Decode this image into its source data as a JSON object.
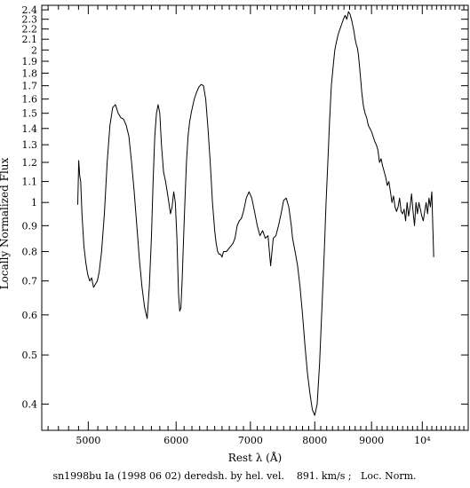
{
  "chart_data": {
    "type": "line",
    "xlabel": "Rest λ (Å)",
    "ylabel": "Locally Normalized Flux",
    "caption": "sn1998bu Ia (1998 06 02) deredsh. by hel. vel.    891. km/s ;   Loc. Norm.",
    "x_scale": "log",
    "y_scale": "log",
    "xlim": [
      4540,
      11000
    ],
    "ylim": [
      0.355,
      2.45
    ],
    "grid": false,
    "legend": "none",
    "line_color": "#000000",
    "x_major_ticks": [
      {
        "value": 5000,
        "label": "5000"
      },
      {
        "value": 6000,
        "label": "6000"
      },
      {
        "value": 7000,
        "label": "7000"
      },
      {
        "value": 8000,
        "label": "8000"
      },
      {
        "value": 9000,
        "label": "9000"
      },
      {
        "value": 10000,
        "label": "10⁴"
      }
    ],
    "x_minor_ticks": [
      4600,
      4700,
      4800,
      4900,
      5100,
      5200,
      5300,
      5400,
      5500,
      5600,
      5700,
      5800,
      5900,
      6100,
      6200,
      6300,
      6400,
      6500,
      6600,
      6700,
      6800,
      6900,
      7100,
      7200,
      7300,
      7400,
      7500,
      7600,
      7700,
      7800,
      7900,
      8100,
      8200,
      8300,
      8400,
      8500,
      8600,
      8700,
      8800,
      8900,
      9100,
      9200,
      9300,
      9400,
      9500,
      9600,
      9700,
      9800,
      9900,
      10100,
      10200,
      10300,
      10400,
      10500,
      10600,
      10700,
      10800,
      10900
    ],
    "y_ticks": [
      {
        "value": 0.4,
        "label": "0.4"
      },
      {
        "value": 0.5,
        "label": "0.5"
      },
      {
        "value": 0.6,
        "label": "0.6"
      },
      {
        "value": 0.7,
        "label": "0.7"
      },
      {
        "value": 0.8,
        "label": "0.8"
      },
      {
        "value": 0.9,
        "label": "0.9"
      },
      {
        "value": 1.0,
        "label": "1"
      },
      {
        "value": 1.1,
        "label": "1.1"
      },
      {
        "value": 1.2,
        "label": "1.2"
      },
      {
        "value": 1.3,
        "label": "1.3"
      },
      {
        "value": 1.4,
        "label": "1.4"
      },
      {
        "value": 1.5,
        "label": "1.5"
      },
      {
        "value": 1.6,
        "label": "1.6"
      },
      {
        "value": 1.7,
        "label": "1.7"
      },
      {
        "value": 1.8,
        "label": "1.8"
      },
      {
        "value": 1.9,
        "label": "1.9"
      },
      {
        "value": 2.0,
        "label": "2"
      },
      {
        "value": 2.1,
        "label": "2.1"
      },
      {
        "value": 2.2,
        "label": "2.2"
      },
      {
        "value": 2.3,
        "label": "2.3"
      },
      {
        "value": 2.4,
        "label": "2.4"
      }
    ],
    "series": [
      {
        "x": [
          4892,
          4902,
          4912,
          4922,
          4935,
          4955,
          4975,
          4995,
          5015,
          5035,
          5055,
          5075,
          5095,
          5115,
          5140,
          5170,
          5200,
          5230,
          5260,
          5290,
          5320,
          5350,
          5380,
          5410,
          5440,
          5470,
          5500,
          5530,
          5560,
          5590,
          5620,
          5650,
          5675,
          5700,
          5720,
          5740,
          5760,
          5780,
          5800,
          5820,
          5845,
          5870,
          5890,
          5910,
          5930,
          5950,
          5970,
          5990,
          6010,
          6030,
          6045,
          6060,
          6075,
          6090,
          6110,
          6130,
          6150,
          6170,
          6190,
          6210,
          6230,
          6260,
          6290,
          6320,
          6350,
          6380,
          6410,
          6440,
          6470,
          6500,
          6520,
          6540,
          6560,
          6580,
          6600,
          6620,
          6640,
          6660,
          6690,
          6720,
          6750,
          6780,
          6810,
          6840,
          6870,
          6900,
          6940,
          6980,
          7020,
          7060,
          7100,
          7140,
          7180,
          7220,
          7260,
          7300,
          7340,
          7380,
          7420,
          7460,
          7500,
          7540,
          7580,
          7600,
          7620,
          7640,
          7680,
          7720,
          7760,
          7800,
          7840,
          7880,
          7920,
          7960,
          8000,
          8040,
          8080,
          8120,
          8160,
          8190,
          8220,
          8250,
          8280,
          8310,
          8340,
          8370,
          8400,
          8430,
          8460,
          8490,
          8520,
          8550,
          8580,
          8610,
          8640,
          8670,
          8700,
          8720,
          8740,
          8760,
          8780,
          8800,
          8820,
          8850,
          8880,
          8910,
          8940,
          8970,
          9000,
          9030,
          9060,
          9090,
          9120,
          9150,
          9180,
          9210,
          9240,
          9270,
          9300,
          9330,
          9360,
          9390,
          9420,
          9450,
          9480,
          9510,
          9540,
          9570,
          9600,
          9630,
          9660,
          9690,
          9720,
          9750,
          9780,
          9810,
          9840,
          9870,
          9900,
          9930,
          9960,
          9990,
          10020,
          10050,
          10080,
          10110,
          10140,
          10170,
          10200,
          10220,
          10240
        ],
        "y": [
          0.99,
          1.21,
          1.13,
          1.1,
          0.95,
          0.82,
          0.76,
          0.72,
          0.7,
          0.71,
          0.68,
          0.69,
          0.7,
          0.73,
          0.8,
          0.95,
          1.2,
          1.42,
          1.54,
          1.56,
          1.5,
          1.47,
          1.46,
          1.42,
          1.35,
          1.2,
          1.05,
          0.9,
          0.77,
          0.68,
          0.62,
          0.59,
          0.68,
          0.85,
          1.1,
          1.35,
          1.5,
          1.56,
          1.5,
          1.3,
          1.15,
          1.1,
          1.05,
          1.0,
          0.95,
          0.98,
          1.05,
          1.0,
          0.85,
          0.66,
          0.61,
          0.62,
          0.7,
          0.82,
          1.0,
          1.2,
          1.35,
          1.44,
          1.5,
          1.55,
          1.6,
          1.65,
          1.69,
          1.71,
          1.7,
          1.6,
          1.4,
          1.2,
          1.0,
          0.88,
          0.83,
          0.8,
          0.79,
          0.79,
          0.78,
          0.8,
          0.8,
          0.8,
          0.81,
          0.82,
          0.83,
          0.85,
          0.9,
          0.92,
          0.93,
          0.96,
          1.02,
          1.05,
          1.02,
          0.96,
          0.9,
          0.86,
          0.88,
          0.85,
          0.86,
          0.75,
          0.85,
          0.86,
          0.9,
          0.95,
          1.01,
          1.02,
          0.98,
          0.94,
          0.9,
          0.85,
          0.8,
          0.75,
          0.68,
          0.6,
          0.52,
          0.46,
          0.42,
          0.39,
          0.38,
          0.4,
          0.48,
          0.62,
          0.8,
          1.0,
          1.2,
          1.45,
          1.7,
          1.85,
          2.0,
          2.08,
          2.15,
          2.2,
          2.25,
          2.3,
          2.34,
          2.3,
          2.38,
          2.35,
          2.28,
          2.2,
          2.1,
          2.05,
          2.02,
          1.95,
          1.85,
          1.75,
          1.65,
          1.55,
          1.5,
          1.47,
          1.42,
          1.4,
          1.38,
          1.35,
          1.32,
          1.3,
          1.27,
          1.2,
          1.22,
          1.18,
          1.15,
          1.12,
          1.08,
          1.1,
          1.05,
          1.0,
          1.03,
          0.98,
          0.96,
          0.98,
          1.02,
          0.96,
          0.95,
          0.97,
          0.92,
          1.0,
          0.94,
          0.98,
          1.04,
          0.96,
          0.9,
          1.0,
          0.95,
          1.0,
          0.97,
          0.94,
          0.92,
          0.96,
          1.0,
          0.95,
          1.02,
          0.98,
          1.05,
          0.9,
          0.78
        ]
      }
    ]
  }
}
